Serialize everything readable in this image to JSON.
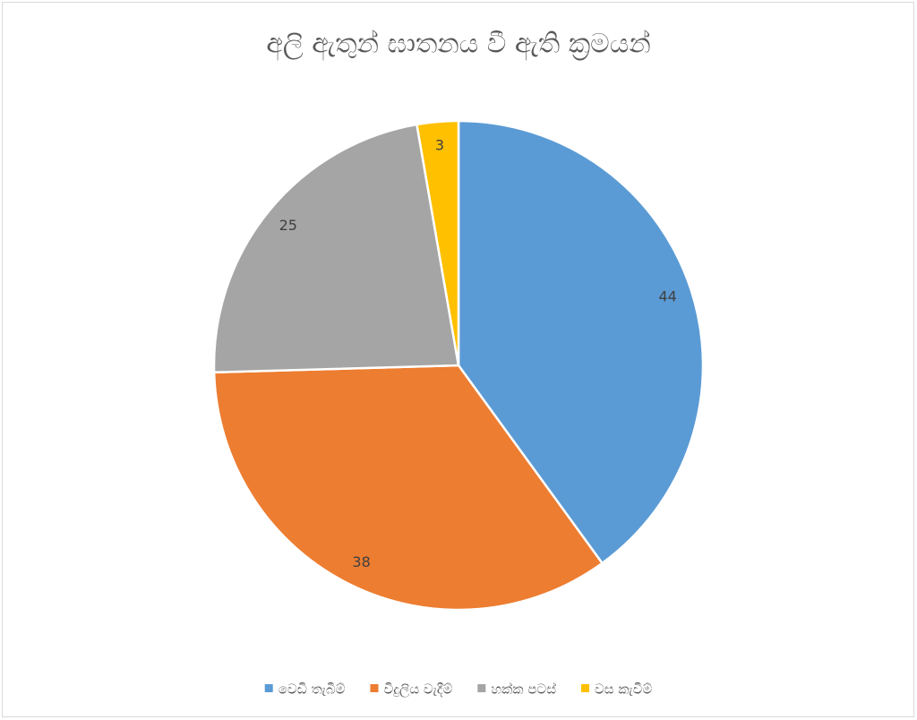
{
  "chart_data": {
    "type": "pie",
    "title": "අලි ඇතුන් ඝාතනය වී ඇති ක්‍රමයන්",
    "categories": [
      "වෙඩි තැබීම්",
      "විදුලිය වැදීම්",
      "හක්ක පටස්",
      "වස කැවීම්"
    ],
    "values": [
      44,
      38,
      25,
      3
    ],
    "colors": [
      "#5b9bd5",
      "#ed7d31",
      "#a5a5a5",
      "#ffc000"
    ],
    "legend": "bottom"
  }
}
